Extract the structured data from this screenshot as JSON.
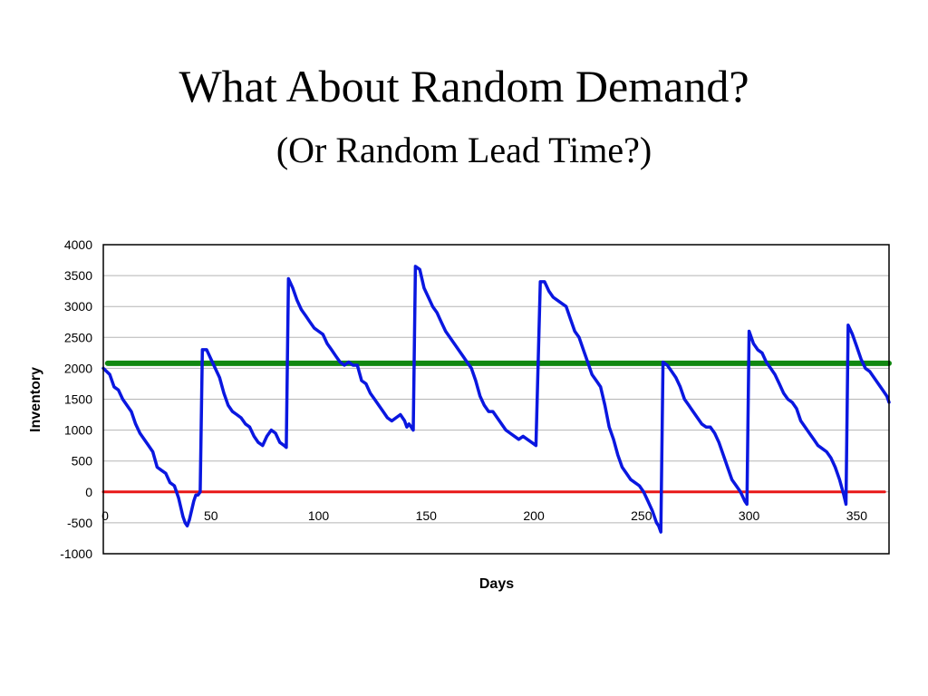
{
  "slide": {
    "title": "What About Random Demand?",
    "subtitle": "(Or Random Lead Time?)"
  },
  "chart_data": {
    "type": "line",
    "title": "",
    "xlabel": "Days",
    "ylabel": "Inventory",
    "xlim": [
      0,
      365
    ],
    "ylim": [
      -1000,
      4000
    ],
    "x_ticks": [
      0,
      50,
      100,
      150,
      200,
      250,
      300,
      350
    ],
    "y_ticks": [
      4000,
      3500,
      3000,
      2500,
      2000,
      1500,
      1000,
      500,
      0,
      -500,
      -1000
    ],
    "grid": true,
    "legend": "none",
    "series": [
      {
        "color": "#0a17e0",
        "points": [
          [
            0,
            2000
          ],
          [
            3,
            1900
          ],
          [
            5,
            1700
          ],
          [
            7,
            1650
          ],
          [
            9,
            1500
          ],
          [
            11,
            1400
          ],
          [
            13,
            1300
          ],
          [
            15,
            1100
          ],
          [
            17,
            950
          ],
          [
            19,
            850
          ],
          [
            21,
            750
          ],
          [
            23,
            650
          ],
          [
            25,
            400
          ],
          [
            27,
            350
          ],
          [
            29,
            300
          ],
          [
            31,
            150
          ],
          [
            33,
            100
          ],
          [
            35,
            -100
          ],
          [
            36,
            -250
          ],
          [
            37,
            -400
          ],
          [
            38,
            -500
          ],
          [
            39,
            -550
          ],
          [
            40,
            -450
          ],
          [
            41,
            -300
          ],
          [
            42,
            -150
          ],
          [
            43,
            -50
          ],
          [
            44,
            -50
          ],
          [
            45,
            0
          ],
          [
            46,
            2300
          ],
          [
            48,
            2300
          ],
          [
            50,
            2150
          ],
          [
            52,
            2000
          ],
          [
            54,
            1850
          ],
          [
            56,
            1600
          ],
          [
            58,
            1400
          ],
          [
            60,
            1300
          ],
          [
            62,
            1250
          ],
          [
            64,
            1200
          ],
          [
            66,
            1100
          ],
          [
            68,
            1050
          ],
          [
            70,
            900
          ],
          [
            72,
            800
          ],
          [
            74,
            750
          ],
          [
            76,
            900
          ],
          [
            78,
            1000
          ],
          [
            80,
            950
          ],
          [
            82,
            800
          ],
          [
            84,
            750
          ],
          [
            85,
            720
          ],
          [
            86,
            3450
          ],
          [
            88,
            3300
          ],
          [
            90,
            3100
          ],
          [
            92,
            2950
          ],
          [
            94,
            2850
          ],
          [
            96,
            2750
          ],
          [
            98,
            2650
          ],
          [
            100,
            2600
          ],
          [
            102,
            2550
          ],
          [
            104,
            2400
          ],
          [
            106,
            2300
          ],
          [
            108,
            2200
          ],
          [
            110,
            2100
          ],
          [
            112,
            2050
          ],
          [
            114,
            2100
          ],
          [
            116,
            2050
          ],
          [
            118,
            2050
          ],
          [
            120,
            1800
          ],
          [
            122,
            1750
          ],
          [
            124,
            1600
          ],
          [
            126,
            1500
          ],
          [
            128,
            1400
          ],
          [
            130,
            1300
          ],
          [
            132,
            1200
          ],
          [
            134,
            1150
          ],
          [
            136,
            1200
          ],
          [
            138,
            1250
          ],
          [
            140,
            1150
          ],
          [
            141,
            1050
          ],
          [
            142,
            1100
          ],
          [
            143,
            1050
          ],
          [
            144,
            1000
          ],
          [
            145,
            3650
          ],
          [
            147,
            3600
          ],
          [
            149,
            3300
          ],
          [
            151,
            3150
          ],
          [
            153,
            3000
          ],
          [
            155,
            2900
          ],
          [
            157,
            2750
          ],
          [
            159,
            2600
          ],
          [
            161,
            2500
          ],
          [
            163,
            2400
          ],
          [
            165,
            2300
          ],
          [
            167,
            2200
          ],
          [
            169,
            2100
          ],
          [
            171,
            2000
          ],
          [
            173,
            1800
          ],
          [
            175,
            1550
          ],
          [
            177,
            1400
          ],
          [
            179,
            1300
          ],
          [
            181,
            1300
          ],
          [
            183,
            1200
          ],
          [
            185,
            1100
          ],
          [
            187,
            1000
          ],
          [
            189,
            950
          ],
          [
            191,
            900
          ],
          [
            193,
            850
          ],
          [
            195,
            900
          ],
          [
            197,
            850
          ],
          [
            199,
            800
          ],
          [
            201,
            750
          ],
          [
            203,
            3400
          ],
          [
            205,
            3400
          ],
          [
            207,
            3250
          ],
          [
            209,
            3150
          ],
          [
            211,
            3100
          ],
          [
            213,
            3050
          ],
          [
            215,
            3000
          ],
          [
            217,
            2800
          ],
          [
            219,
            2600
          ],
          [
            221,
            2500
          ],
          [
            223,
            2300
          ],
          [
            225,
            2100
          ],
          [
            227,
            1900
          ],
          [
            229,
            1800
          ],
          [
            231,
            1700
          ],
          [
            233,
            1400
          ],
          [
            235,
            1050
          ],
          [
            237,
            850
          ],
          [
            239,
            600
          ],
          [
            241,
            400
          ],
          [
            243,
            300
          ],
          [
            245,
            200
          ],
          [
            247,
            150
          ],
          [
            249,
            100
          ],
          [
            251,
            0
          ],
          [
            253,
            -150
          ],
          [
            255,
            -300
          ],
          [
            257,
            -500
          ],
          [
            258,
            -550
          ],
          [
            259,
            -650
          ],
          [
            260,
            2100
          ],
          [
            262,
            2050
          ],
          [
            264,
            1950
          ],
          [
            266,
            1850
          ],
          [
            268,
            1700
          ],
          [
            270,
            1500
          ],
          [
            272,
            1400
          ],
          [
            274,
            1300
          ],
          [
            276,
            1200
          ],
          [
            278,
            1100
          ],
          [
            280,
            1050
          ],
          [
            282,
            1050
          ],
          [
            284,
            950
          ],
          [
            286,
            800
          ],
          [
            288,
            600
          ],
          [
            290,
            400
          ],
          [
            292,
            200
          ],
          [
            294,
            100
          ],
          [
            296,
            0
          ],
          [
            298,
            -150
          ],
          [
            299,
            -200
          ],
          [
            300,
            2600
          ],
          [
            302,
            2400
          ],
          [
            304,
            2300
          ],
          [
            306,
            2250
          ],
          [
            308,
            2100
          ],
          [
            310,
            2000
          ],
          [
            312,
            1900
          ],
          [
            314,
            1750
          ],
          [
            316,
            1600
          ],
          [
            318,
            1500
          ],
          [
            320,
            1450
          ],
          [
            322,
            1350
          ],
          [
            324,
            1150
          ],
          [
            326,
            1050
          ],
          [
            328,
            950
          ],
          [
            330,
            850
          ],
          [
            332,
            750
          ],
          [
            334,
            700
          ],
          [
            336,
            650
          ],
          [
            338,
            550
          ],
          [
            340,
            400
          ],
          [
            342,
            200
          ],
          [
            344,
            -50
          ],
          [
            345,
            -200
          ],
          [
            346,
            2700
          ],
          [
            348,
            2550
          ],
          [
            350,
            2350
          ],
          [
            352,
            2150
          ],
          [
            354,
            2000
          ],
          [
            356,
            1950
          ],
          [
            358,
            1850
          ],
          [
            360,
            1750
          ],
          [
            362,
            1650
          ],
          [
            364,
            1550
          ],
          [
            365,
            1450
          ]
        ]
      },
      {
        "color": "#118811",
        "points": [
          [
            2,
            2080
          ],
          [
            365,
            2080
          ]
        ]
      },
      {
        "color": "#e81818",
        "points": [
          [
            0,
            0
          ],
          [
            363,
            0
          ]
        ]
      }
    ]
  }
}
